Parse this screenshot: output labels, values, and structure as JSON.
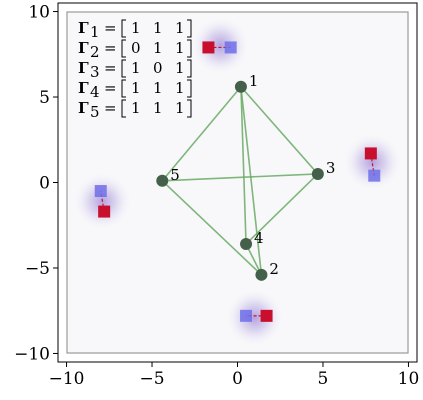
{
  "chart_data": {
    "type": "scatter",
    "xlim": [
      -10.5,
      10.5
    ],
    "ylim": [
      -10.5,
      10.5
    ],
    "x_ticks": [
      -10,
      -5,
      0,
      5,
      10
    ],
    "y_ticks": [
      -10,
      -5,
      0,
      5,
      10
    ],
    "x_tick_labels": [
      "−10",
      "−5",
      "0",
      "5",
      "10"
    ],
    "y_tick_labels": [
      "−10",
      "−5",
      "0",
      "5",
      "10"
    ],
    "grid": false,
    "legend": {
      "placement": "top-left",
      "rows": [
        {
          "symbol": "Γ",
          "subscript": "1",
          "vector": [
            "1",
            "1",
            "1"
          ]
        },
        {
          "symbol": "Γ",
          "subscript": "2",
          "vector": [
            "0",
            "1",
            "1"
          ]
        },
        {
          "symbol": "Γ",
          "subscript": "3",
          "vector": [
            "1",
            "0",
            "1"
          ]
        },
        {
          "symbol": "Γ",
          "subscript": "4",
          "vector": [
            "1",
            "1",
            "1"
          ]
        },
        {
          "symbol": "Γ",
          "subscript": "5",
          "vector": [
            "1",
            "1",
            "1"
          ]
        }
      ]
    },
    "nodes": [
      {
        "label": "1",
        "x": 0.2,
        "y": 5.6
      },
      {
        "label": "2",
        "x": 1.4,
        "y": -5.4
      },
      {
        "label": "3",
        "x": 4.7,
        "y": 0.5
      },
      {
        "label": "4",
        "x": 0.5,
        "y": -3.6
      },
      {
        "label": "5",
        "x": -4.4,
        "y": 0.1
      }
    ],
    "edges": [
      [
        "1",
        "2"
      ],
      [
        "1",
        "3"
      ],
      [
        "1",
        "4"
      ],
      [
        "1",
        "5"
      ],
      [
        "2",
        "4"
      ],
      [
        "2",
        "5"
      ],
      [
        "3",
        "4"
      ],
      [
        "3",
        "5"
      ]
    ],
    "glow_centers": [
      {
        "x": -1.0,
        "y": 8.0
      },
      {
        "x": 7.9,
        "y": 1.2
      },
      {
        "x": -7.9,
        "y": -1.1
      },
      {
        "x": 1.0,
        "y": -7.9
      }
    ],
    "red_squares": [
      {
        "x": -1.7,
        "y": 7.9
      },
      {
        "x": 7.8,
        "y": 1.7
      },
      {
        "x": -7.8,
        "y": -1.7
      },
      {
        "x": 1.7,
        "y": -7.8
      }
    ],
    "blue_squares": [
      {
        "x": -0.4,
        "y": 7.9
      },
      {
        "x": 8.0,
        "y": 0.4
      },
      {
        "x": -8.0,
        "y": -0.5
      },
      {
        "x": 0.5,
        "y": -7.8
      }
    ],
    "colors": {
      "frame": "#9a9a9a",
      "edge": "#6aaa64",
      "node": "#45604a",
      "red": "#c8102e",
      "blue": "#6f6fe8",
      "glow": "#7d5bc8",
      "plot_bg": "#f8f8fa"
    }
  }
}
